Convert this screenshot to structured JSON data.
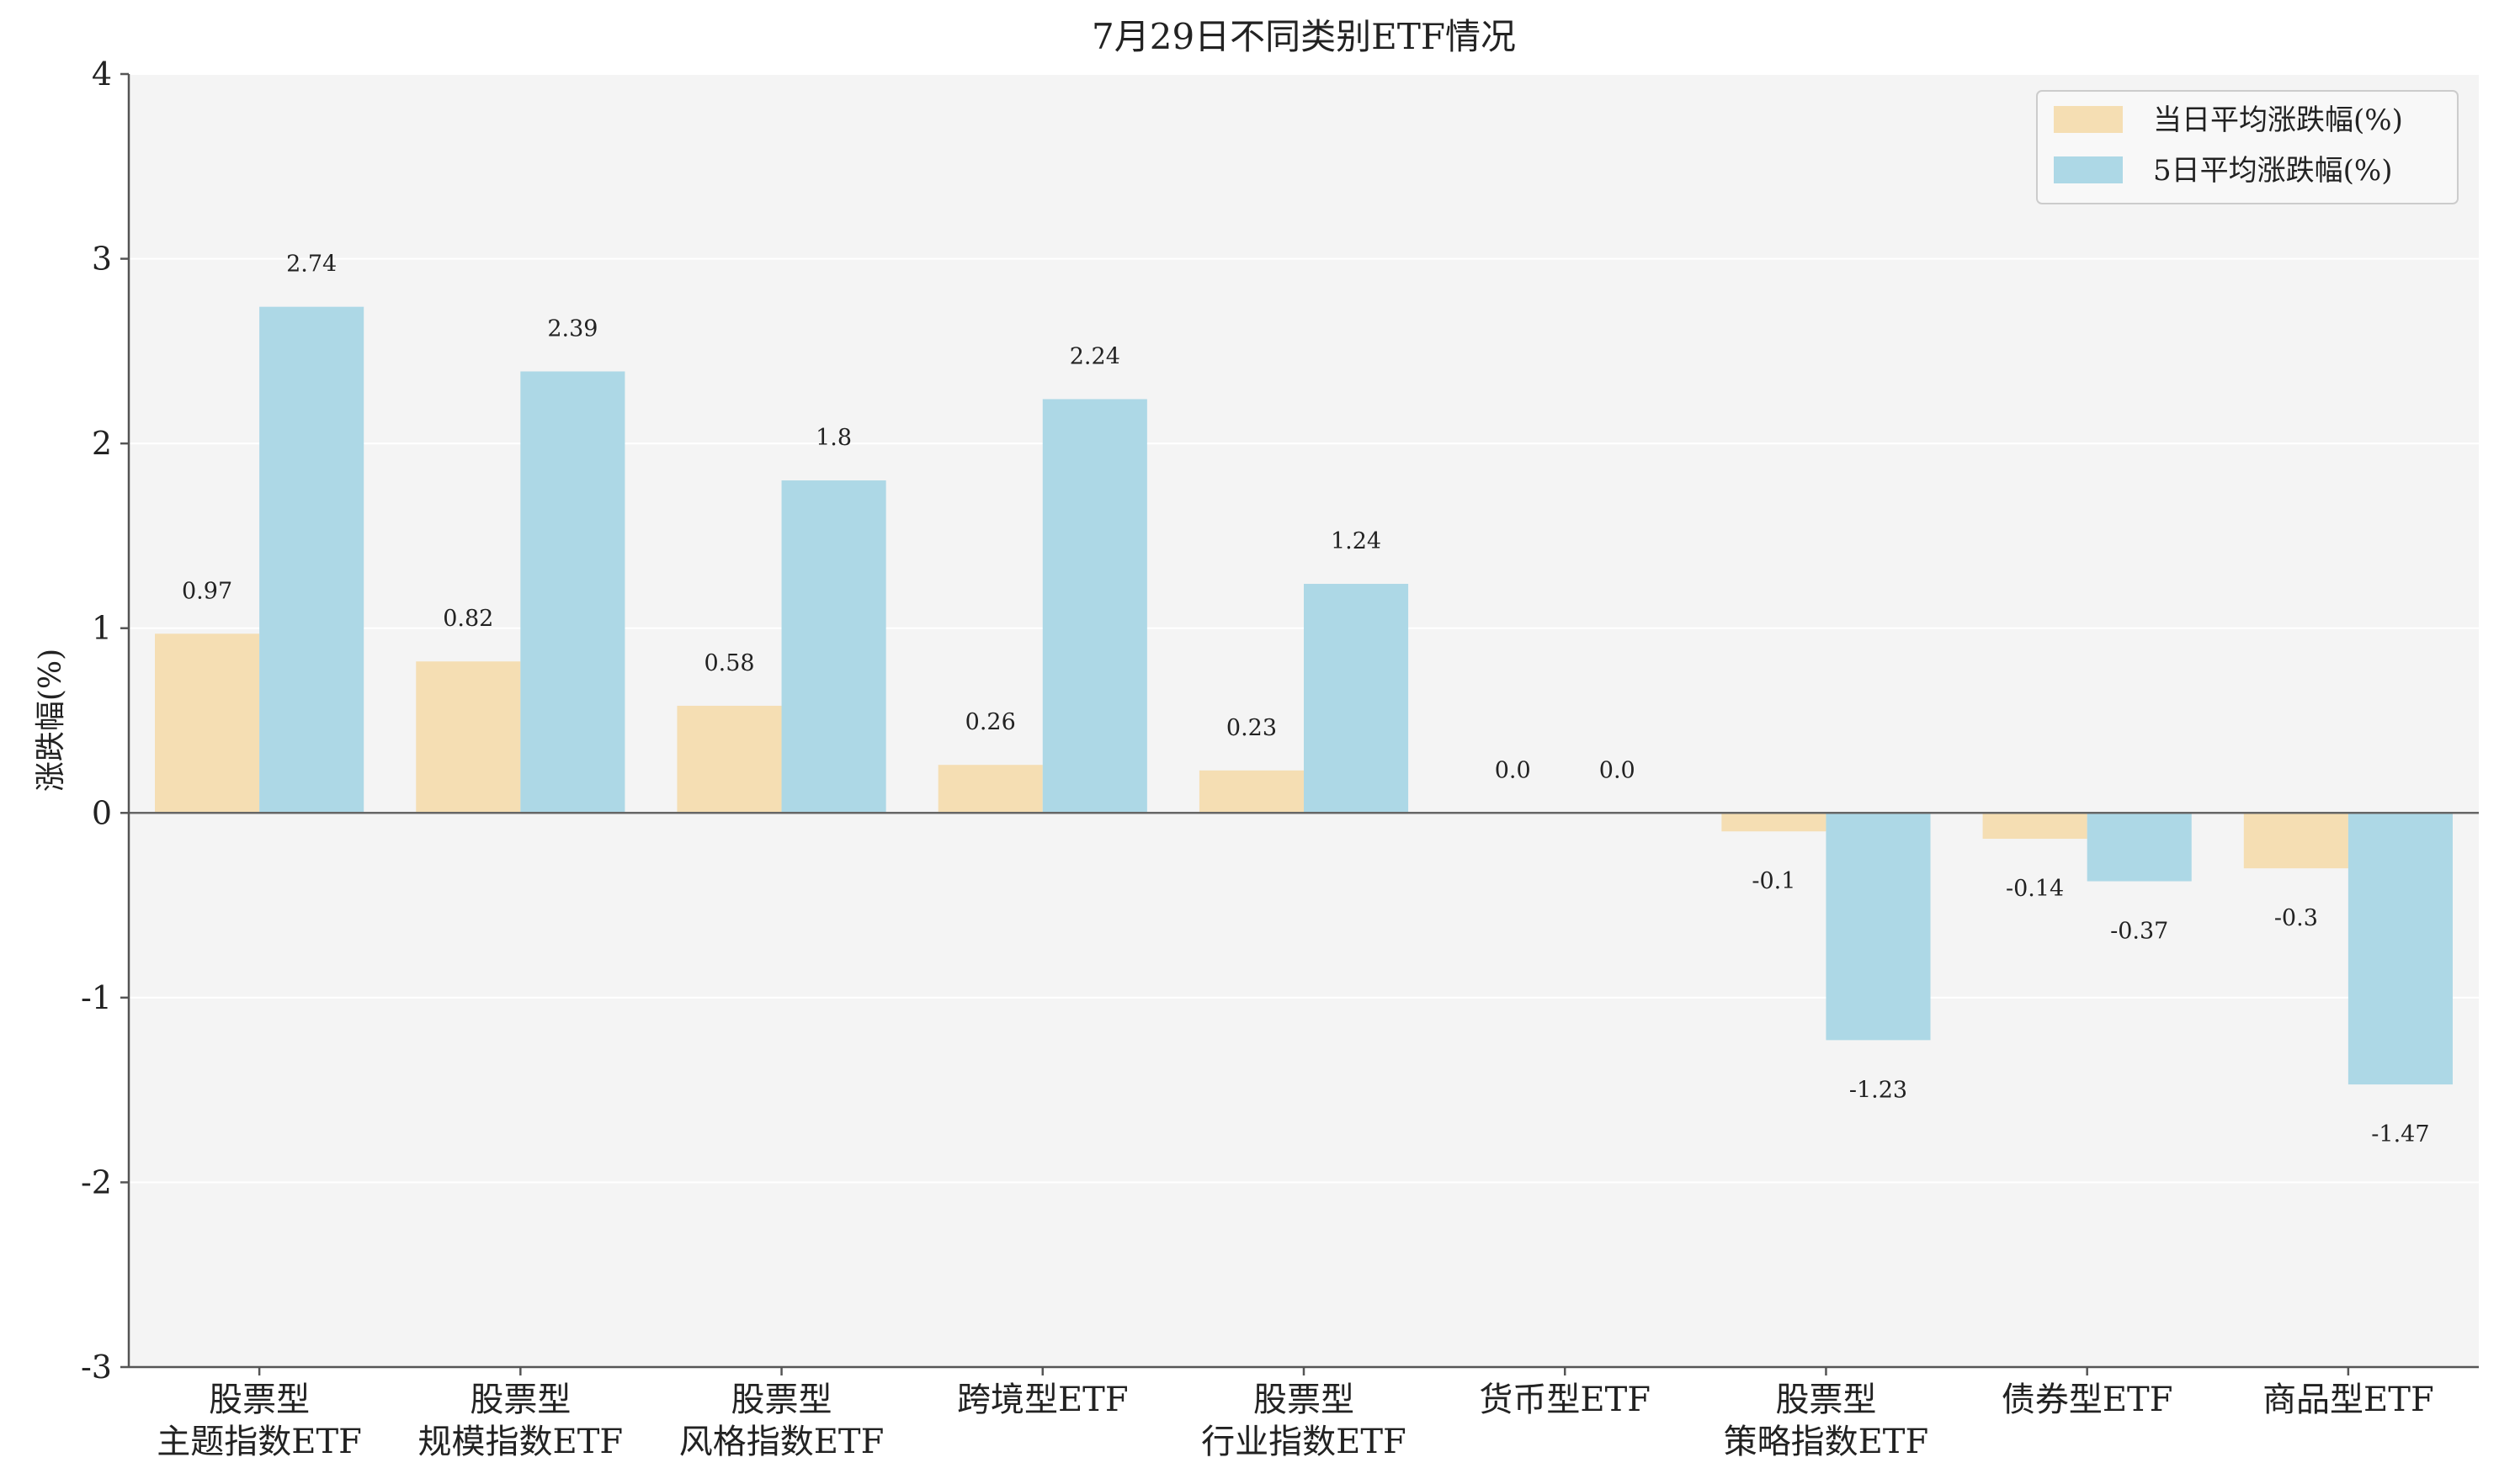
{
  "chart_data": {
    "type": "bar",
    "title": "7月29日不同类别ETF情况",
    "ylabel": "涨跌幅(%)",
    "xlabel": "",
    "ylim": [
      -3,
      4
    ],
    "yticks": [
      "-3",
      "-2",
      "-1",
      "0",
      "1",
      "2",
      "3",
      "4"
    ],
    "grid": true,
    "legend_position": "top-right",
    "categories": [
      [
        "股票型",
        "主题指数ETF"
      ],
      [
        "股票型",
        "规模指数ETF"
      ],
      [
        "股票型",
        "风格指数ETF"
      ],
      [
        "跨境型ETF"
      ],
      [
        "股票型",
        "行业指数ETF"
      ],
      [
        "货币型ETF"
      ],
      [
        "股票型",
        "策略指数ETF"
      ],
      [
        "债券型ETF"
      ],
      [
        "商品型ETF"
      ]
    ],
    "series": [
      {
        "name": "当日平均涨跌幅(%)",
        "color": "#f5deb3",
        "values": [
          0.97,
          0.82,
          0.58,
          0.26,
          0.23,
          0.0,
          -0.1,
          -0.14,
          -0.3
        ],
        "labels": [
          "0.97",
          "0.82",
          "0.58",
          "0.26",
          "0.23",
          "0.0",
          "-0.1",
          "-0.14",
          "-0.3"
        ]
      },
      {
        "name": "5日平均涨跌幅(%)",
        "color": "#add8e6",
        "values": [
          2.74,
          2.39,
          1.8,
          2.24,
          1.24,
          0.0,
          -1.23,
          -0.37,
          -1.47
        ],
        "labels": [
          "2.74",
          "2.39",
          "1.8",
          "2.24",
          "1.24",
          "0.0",
          "-1.23",
          "-0.37",
          "-1.47"
        ]
      }
    ]
  }
}
